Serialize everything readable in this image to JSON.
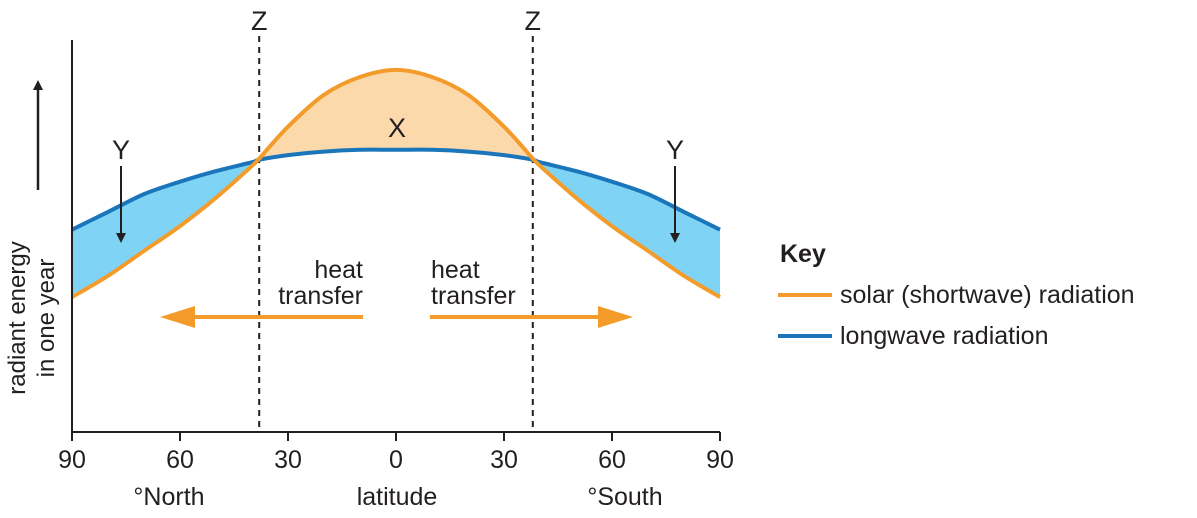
{
  "chart_data": {
    "type": "line",
    "xlabel": "latitude",
    "ylabel_line1": "radiant energy",
    "ylabel_line2": "in one year",
    "x_ticks": [
      {
        "value": -90,
        "label": "90"
      },
      {
        "value": -60,
        "label": "60"
      },
      {
        "value": -30,
        "label": "30"
      },
      {
        "value": 0,
        "label": "0"
      },
      {
        "value": 30,
        "label": "30"
      },
      {
        "value": 60,
        "label": "60"
      },
      {
        "value": 90,
        "label": "90"
      }
    ],
    "xlim": [
      -90,
      90
    ],
    "ylim": [
      0,
      100
    ],
    "hemisphere_labels": {
      "north": "°North",
      "south": "°South"
    },
    "series": [
      {
        "name": "solar (shortwave) radiation",
        "color": "#f39c2b",
        "x": [
          -90,
          -80,
          -70,
          -60,
          -50,
          -40,
          -38,
          -30,
          -20,
          -10,
          0,
          10,
          20,
          30,
          38,
          40,
          50,
          60,
          70,
          80,
          90
        ],
        "y": [
          38,
          44,
          51,
          58,
          66,
          75,
          77,
          86,
          95,
          100,
          102,
          100,
          95,
          86,
          77,
          75,
          66,
          58,
          51,
          44,
          38
        ]
      },
      {
        "name": "longwave radiation",
        "color": "#1b75bb",
        "x": [
          -90,
          -80,
          -70,
          -60,
          -50,
          -40,
          -38,
          -30,
          -20,
          -10,
          0,
          10,
          20,
          30,
          38,
          40,
          50,
          60,
          70,
          80,
          90
        ],
        "y": [
          57,
          62,
          67,
          70.5,
          73.5,
          76,
          76.7,
          78,
          79,
          79.5,
          79.5,
          79.5,
          79,
          78,
          76.7,
          76,
          73.5,
          70.5,
          67,
          62,
          57
        ]
      }
    ],
    "regions": {
      "surplus_fill": "#fcd9aa",
      "deficit_fill": "#7fd3f4"
    },
    "z_lines": [
      {
        "x": -38,
        "label": "Z"
      },
      {
        "x": 38,
        "label": "Z"
      }
    ],
    "annotations": {
      "x_label": "X",
      "y_left": "Y",
      "y_right": "Y",
      "heat_left_line1": "heat",
      "heat_left_line2": "transfer",
      "heat_right_line1": "heat",
      "heat_right_line2": "transfer"
    },
    "legend": {
      "title": "Key",
      "position": "right"
    }
  }
}
